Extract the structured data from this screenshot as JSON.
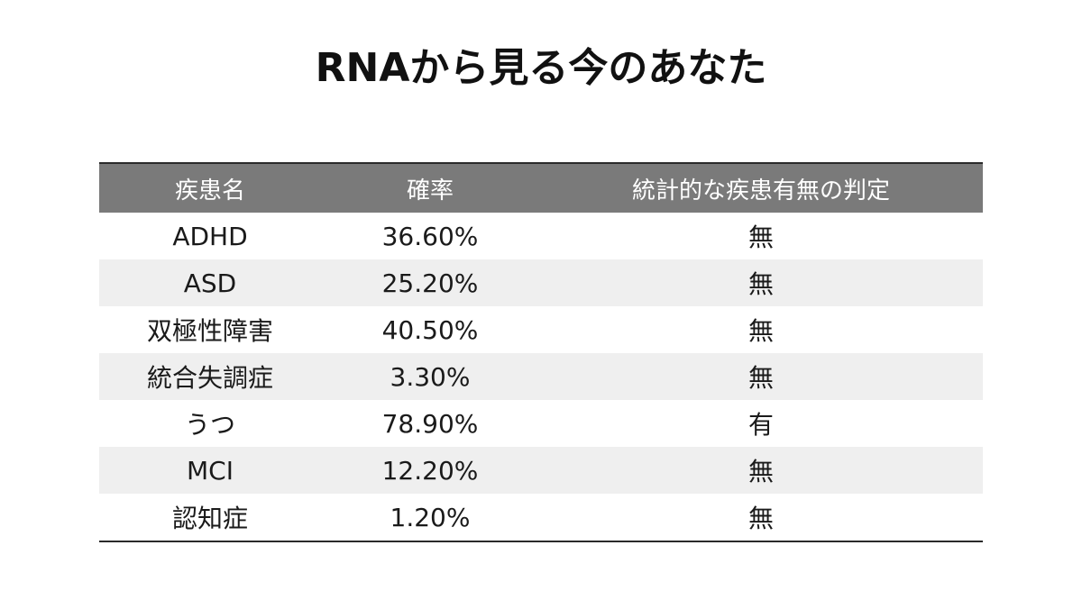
{
  "title": "RNAから見る今のあなた",
  "table": {
    "headers": {
      "disease": "疾患名",
      "probability": "確率",
      "judgement": "統計的な疾患有無の判定"
    },
    "rows": [
      {
        "disease": "ADHD",
        "probability": "36.60%",
        "judgement": "無"
      },
      {
        "disease": "ASD",
        "probability": "25.20%",
        "judgement": "無"
      },
      {
        "disease": "双極性障害",
        "probability": "40.50%",
        "judgement": "無"
      },
      {
        "disease": "統合失調症",
        "probability": "3.30%",
        "judgement": "無"
      },
      {
        "disease": "うつ",
        "probability": "78.90%",
        "judgement": "有"
      },
      {
        "disease": "MCI",
        "probability": "12.20%",
        "judgement": "無"
      },
      {
        "disease": "認知症",
        "probability": "1.20%",
        "judgement": "無"
      }
    ]
  },
  "colors": {
    "header_background": "#7a7a7a",
    "header_text": "#ffffff",
    "stripe_background": "#efefef",
    "positive_judgement": "#e8231f"
  }
}
